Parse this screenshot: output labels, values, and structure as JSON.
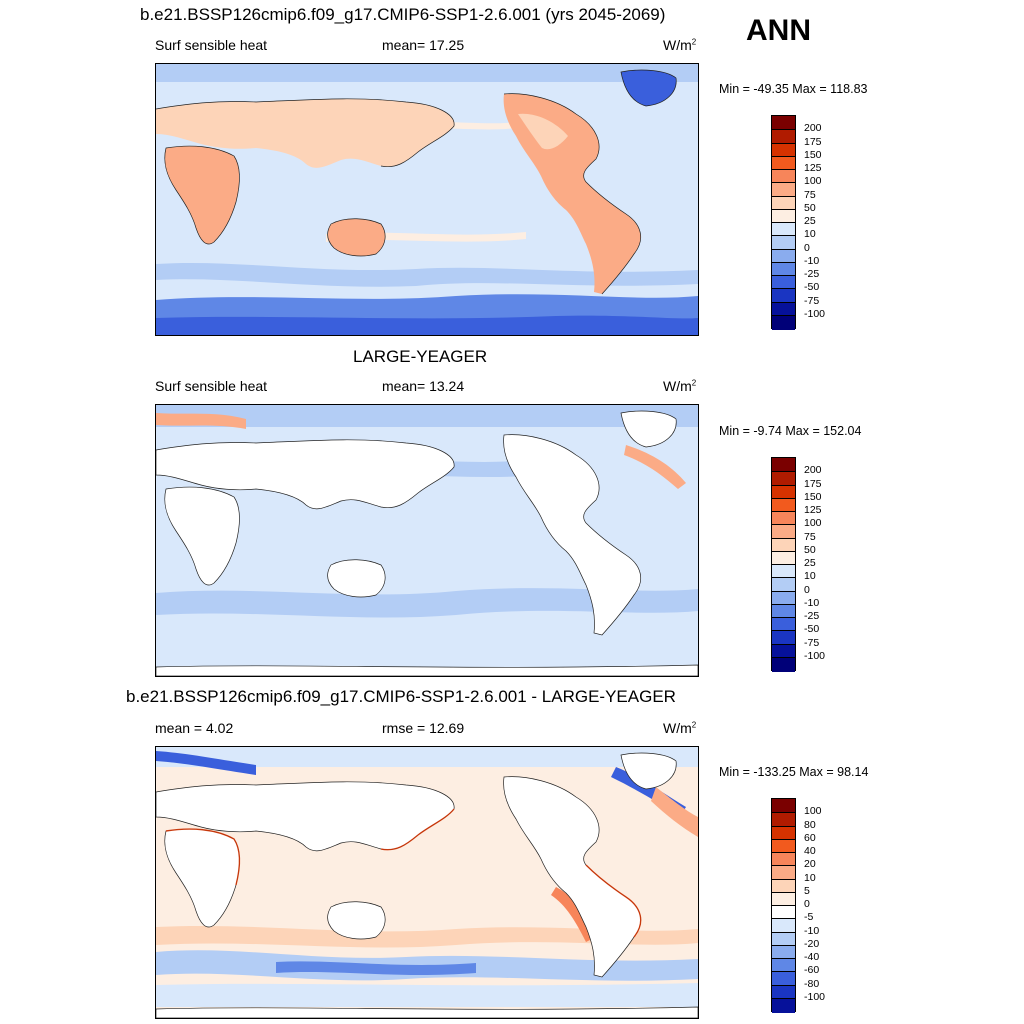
{
  "season": "ANN",
  "panels": [
    {
      "id": "model",
      "title": "b.e21.BSSP126cmip6.f09_g17.CMIP6-SSP1-2.6.001 (yrs 2045-2069)",
      "left_label": "Surf sensible heat",
      "center_label": "mean=  17.25",
      "units": "W/m",
      "units_exp": "2",
      "minmax": "Min = -49.35 Max = 118.83",
      "colorbar_labels": [
        "200",
        "175",
        "150",
        "125",
        "100",
        "75",
        "50",
        "25",
        "10",
        "0",
        "-10",
        "-25",
        "-50",
        "-75",
        "-100"
      ]
    },
    {
      "id": "obs",
      "title": "LARGE-YEAGER",
      "left_label": "Surf sensible heat",
      "center_label": "mean=  13.24",
      "units": "W/m",
      "units_exp": "2",
      "minmax": "Min =  -9.74 Max = 152.04",
      "colorbar_labels": [
        "200",
        "175",
        "150",
        "125",
        "100",
        "75",
        "50",
        "25",
        "10",
        "0",
        "-10",
        "-25",
        "-50",
        "-75",
        "-100"
      ]
    },
    {
      "id": "diff",
      "title": "b.e21.BSSP126cmip6.f09_g17.CMIP6-SSP1-2.6.001 - LARGE-YEAGER",
      "left_label": "mean =   4.02",
      "center_label": "rmse =  12.69",
      "units": "W/m",
      "units_exp": "2",
      "minmax": "Min = -133.25 Max =  98.14",
      "colorbar_labels": [
        "100",
        "80",
        "60",
        "40",
        "20",
        "10",
        "5",
        "0",
        "-5",
        "-10",
        "-20",
        "-40",
        "-60",
        "-80",
        "-100"
      ]
    }
  ],
  "colors": {
    "abs_scale": [
      "#7a0000",
      "#b01b00",
      "#d63200",
      "#f25a1e",
      "#f7855a",
      "#fbab86",
      "#fdd4b8",
      "#fdeee2",
      "#d9e8fb",
      "#b3cdf5",
      "#8aacee",
      "#5f87e6",
      "#3a5fdc",
      "#1a35c2",
      "#06119a",
      "#000078"
    ],
    "diff_scale": [
      "#7a0000",
      "#b01b00",
      "#d63200",
      "#f25a1e",
      "#f7855a",
      "#fbab86",
      "#fdd4b8",
      "#fdeee2",
      "#ffffff",
      "#d9e8fb",
      "#b3cdf5",
      "#8aacee",
      "#5f87e6",
      "#3a5fdc",
      "#1a35c2",
      "#06119a",
      "#000078"
    ]
  }
}
